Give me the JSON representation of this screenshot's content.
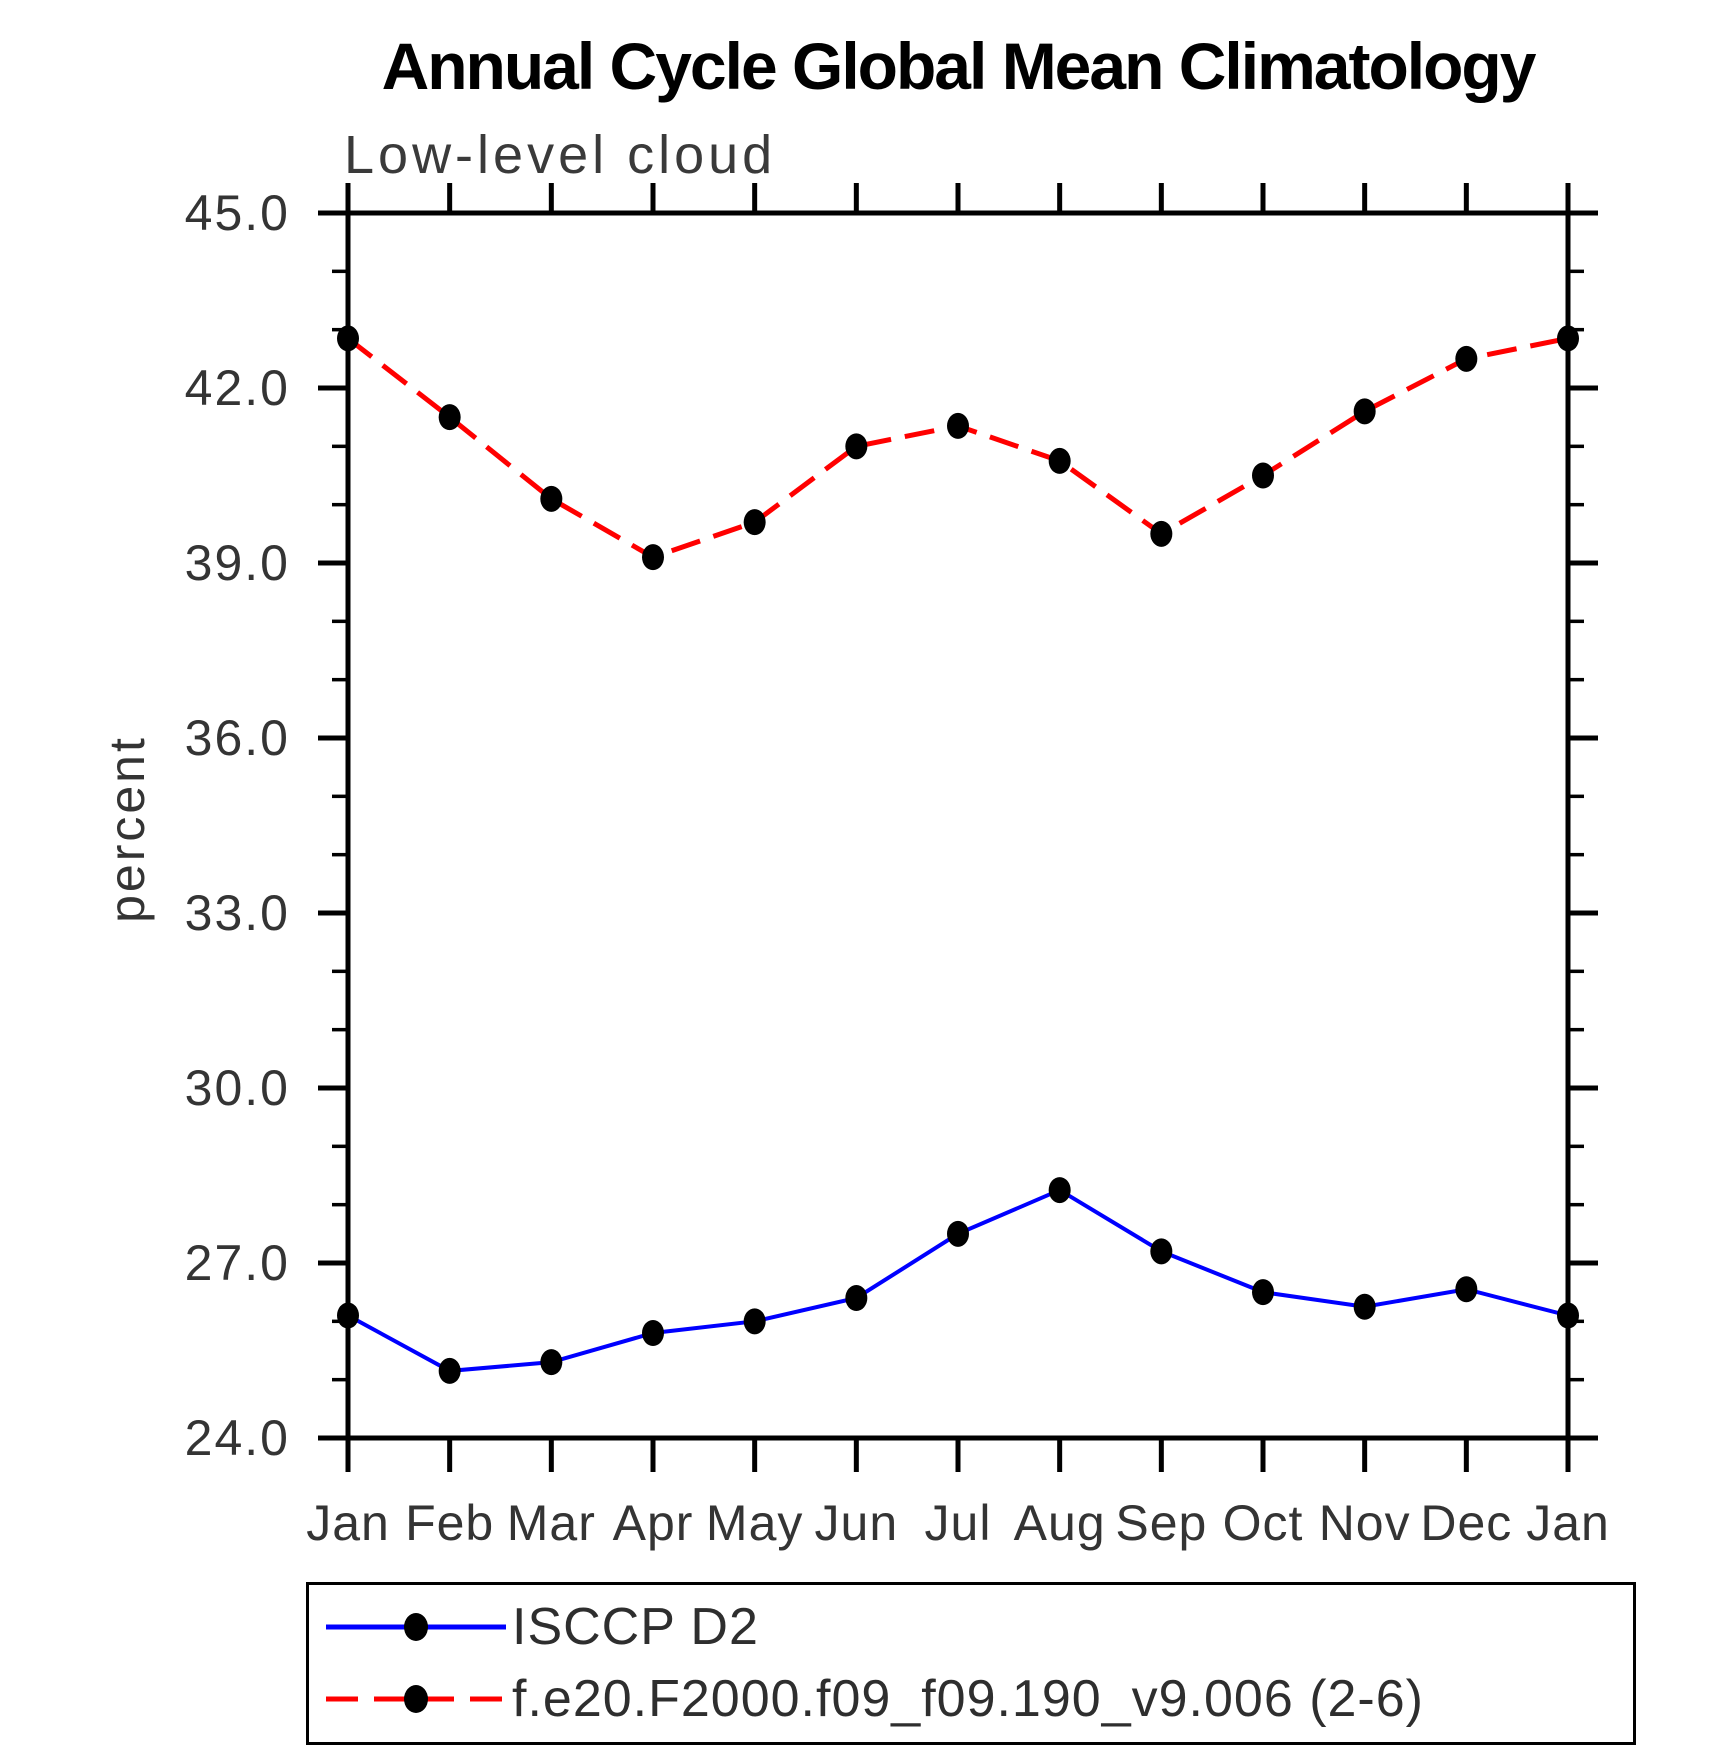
{
  "title": "Annual Cycle Global Mean Climatology",
  "subtitle": "Low-level cloud",
  "y_axis_label": "percent",
  "legend": {
    "position": "bottom",
    "items": [
      {
        "label": "ISCCP D2",
        "color": "#0000ff",
        "line_style": "solid",
        "marker": "filled-black-circle"
      },
      {
        "label": "f.e20.F2000.f09_f09.190_v9.006 (2-6)",
        "color": "#ff0000",
        "line_style": "dashed",
        "marker": "filled-black-circle"
      }
    ]
  },
  "chart_data": {
    "type": "line",
    "title": "Annual Cycle Global Mean Climatology",
    "subtitle": "Low-level cloud",
    "xlabel": "",
    "ylabel": "percent",
    "x_categories": [
      "Jan",
      "Feb",
      "Mar",
      "Apr",
      "May",
      "Jun",
      "Jul",
      "Aug",
      "Sep",
      "Oct",
      "Nov",
      "Dec",
      "Jan"
    ],
    "ylim": [
      24.0,
      45.0
    ],
    "y_major_tick_step": 3.0,
    "y_minor_tick_step": 1.0,
    "y_tick_labels": [
      "24.0",
      "27.0",
      "30.0",
      "33.0",
      "36.0",
      "39.0",
      "42.0",
      "45.0"
    ],
    "grid": false,
    "legend_position": "bottom",
    "marker": "filled-black-circle",
    "axis_color": "#000000",
    "tick_label_color": "#343434",
    "series": [
      {
        "name": "ISCCP D2",
        "color": "#0000ff",
        "line_style": "solid",
        "values": [
          26.1,
          25.15,
          25.3,
          25.8,
          26.0,
          26.4,
          27.5,
          28.25,
          27.2,
          26.5,
          26.25,
          26.55,
          26.1
        ]
      },
      {
        "name": "f.e20.F2000.f09_f09.190_v9.006 (2-6)",
        "color": "#ff0000",
        "line_style": "dashed",
        "values": [
          42.85,
          41.5,
          40.1,
          39.1,
          39.7,
          41.0,
          41.35,
          40.75,
          39.5,
          40.5,
          41.6,
          42.5,
          42.85
        ]
      }
    ]
  }
}
